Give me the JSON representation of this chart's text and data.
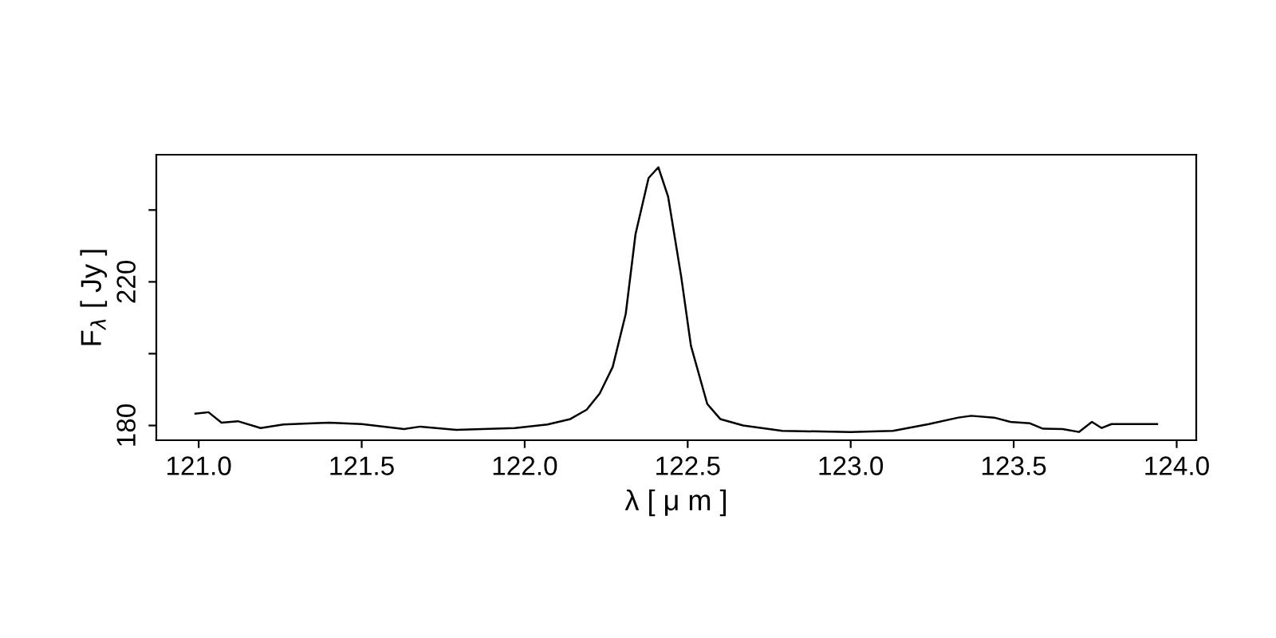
{
  "chart_data": {
    "type": "line",
    "xlabel": "λ [ μ m ]",
    "ylabel": "F$_{λ}$ [ Jy ]",
    "xlim": [
      120.87,
      124.06
    ],
    "ylim": [
      175.9,
      255.4
    ],
    "xticks": [
      {
        "value": 121.0,
        "label": "121.0"
      },
      {
        "value": 121.5,
        "label": "121.5"
      },
      {
        "value": 122.0,
        "label": "122.0"
      },
      {
        "value": 122.5,
        "label": "122.5"
      },
      {
        "value": 123.0,
        "label": "123.0"
      },
      {
        "value": 123.5,
        "label": "123.5"
      },
      {
        "value": 124.0,
        "label": "124.0"
      }
    ],
    "yticks": [
      180,
      {
        "value": 200,
        "label": null
      },
      220,
      {
        "value": 240,
        "label": null
      }
    ],
    "grid": false,
    "marker": "none",
    "line_style": "solid",
    "series": [
      {
        "color": "#000000",
        "x": [
          120.99,
          121.03,
          121.07,
          121.12,
          121.19,
          121.26,
          121.35,
          121.4,
          121.5,
          121.63,
          121.68,
          121.79,
          121.97,
          122.07,
          122.14,
          122.19,
          122.23,
          122.27,
          122.31,
          122.34,
          122.38,
          122.41,
          122.44,
          122.48,
          122.51,
          122.56,
          122.6,
          122.67,
          122.79,
          123.0,
          123.13,
          123.24,
          123.33,
          123.37,
          123.44,
          123.49,
          123.55,
          123.59,
          123.65,
          123.7,
          123.74,
          123.77,
          123.8,
          123.94
        ],
        "values": [
          183.3,
          183.7,
          180.8,
          181.2,
          179.3,
          180.3,
          180.6,
          180.8,
          180.4,
          179.0,
          179.7,
          178.8,
          179.3,
          180.3,
          181.8,
          184.4,
          188.9,
          196.3,
          211.1,
          233.3,
          248.9,
          251.9,
          243.7,
          221.5,
          202.2,
          186.0,
          181.8,
          180.0,
          178.5,
          178.2,
          178.5,
          180.4,
          182.2,
          182.7,
          182.2,
          181.0,
          180.6,
          179.1,
          179.0,
          178.2,
          181.0,
          179.3,
          180.4,
          180.4
        ]
      }
    ]
  }
}
